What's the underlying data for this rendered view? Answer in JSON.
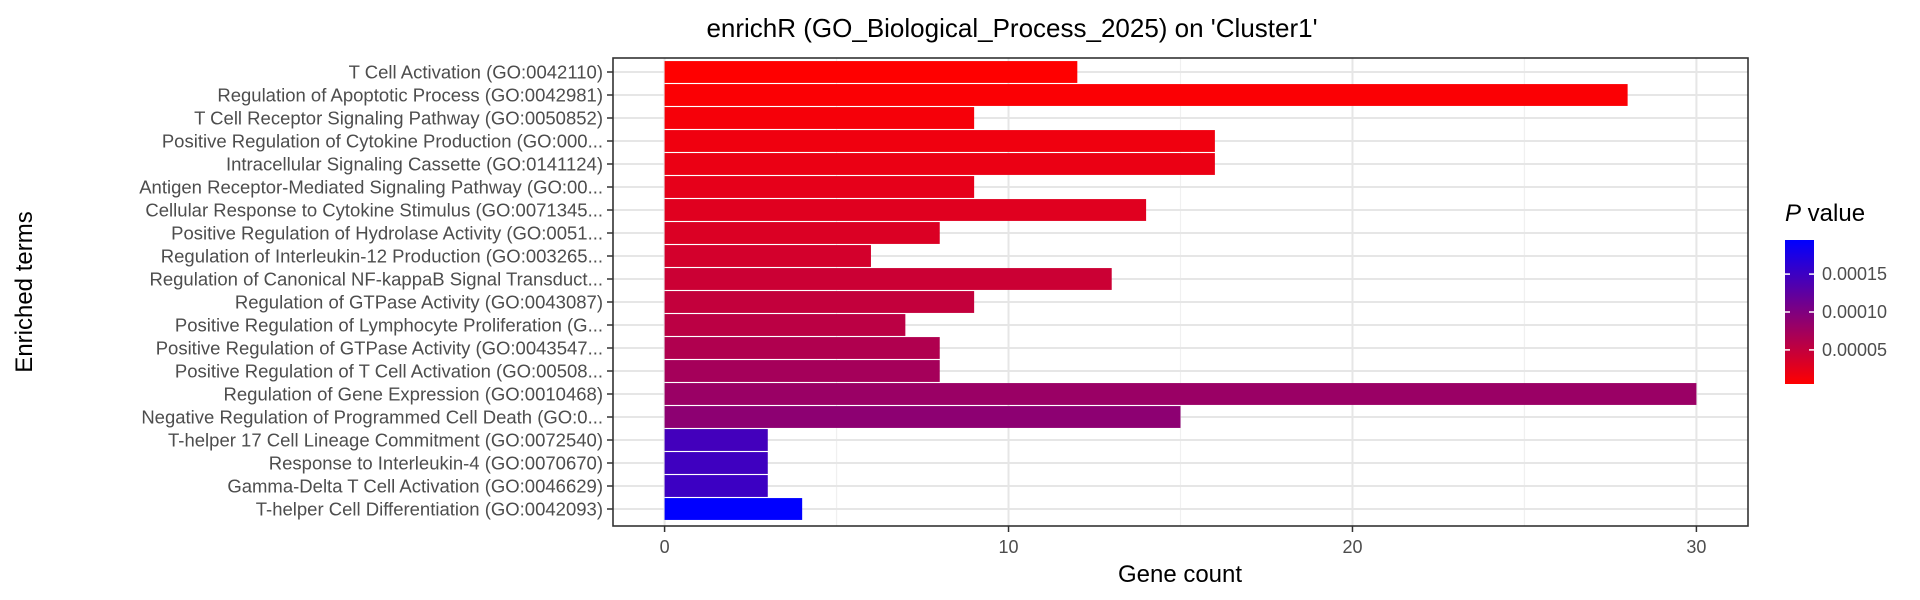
{
  "chart_data": {
    "type": "bar",
    "orientation": "horizontal",
    "title": "enrichR (GO_Biological_Process_2025) on 'Cluster1'",
    "xlabel": "Gene count",
    "ylabel": "Enriched terms",
    "xlim": [
      -1.5,
      31.5
    ],
    "x_ticks": [
      0,
      10,
      20,
      30
    ],
    "grid": true,
    "categories": [
      "T Cell Activation (GO:0042110)",
      "Regulation of Apoptotic Process (GO:0042981)",
      "T Cell Receptor Signaling Pathway (GO:0050852)",
      "Positive Regulation of Cytokine Production (GO:000...",
      "Intracellular Signaling Cassette (GO:0141124)",
      "Antigen Receptor-Mediated Signaling Pathway (GO:00...",
      "Cellular Response to Cytokine Stimulus (GO:0071345...",
      "Positive Regulation of Hydrolase Activity (GO:0051...",
      "Regulation of Interleukin-12 Production (GO:003265...",
      "Regulation of Canonical NF-kappaB Signal Transduct...",
      "Regulation of GTPase Activity (GO:0043087)",
      "Positive Regulation of Lymphocyte Proliferation (G...",
      "Positive Regulation of GTPase Activity (GO:0043547...",
      "Positive Regulation of T Cell Activation (GO:00508...",
      "Regulation of Gene Expression (GO:0010468)",
      "Negative Regulation of Programmed Cell Death (GO:0...",
      "T-helper 17 Cell Lineage Commitment (GO:0072540)",
      "Response to Interleukin-4 (GO:0070670)",
      "Gamma-Delta T Cell Activation (GO:0046629)",
      "T-helper Cell Differentiation (GO:0042093)"
    ],
    "values": [
      12,
      28,
      9,
      16,
      16,
      9,
      14,
      8,
      6,
      13,
      9,
      7,
      8,
      8,
      30,
      15,
      3,
      3,
      3,
      4
    ],
    "p_values": [
      5e-06,
      8e-06,
      1.2e-05,
      1.6e-05,
      2e-05,
      2.4e-05,
      2.8e-05,
      3.2e-05,
      3.8e-05,
      4.4e-05,
      5e-05,
      5.6e-05,
      6.4e-05,
      7.2e-05,
      8e-05,
      9e-05,
      0.000145,
      0.000148,
      0.00015,
      0.000195
    ],
    "color_legend": {
      "title_italic": "P",
      "title_rest": " value",
      "ticks": [
        5e-05,
        0.0001,
        0.00015
      ],
      "tick_labels": [
        "0.00005",
        "0.00010",
        "0.00015"
      ],
      "range": [
        5e-06,
        0.000195
      ],
      "low_color": "#ff0000",
      "high_color": "#0000ff",
      "position": "right"
    }
  }
}
